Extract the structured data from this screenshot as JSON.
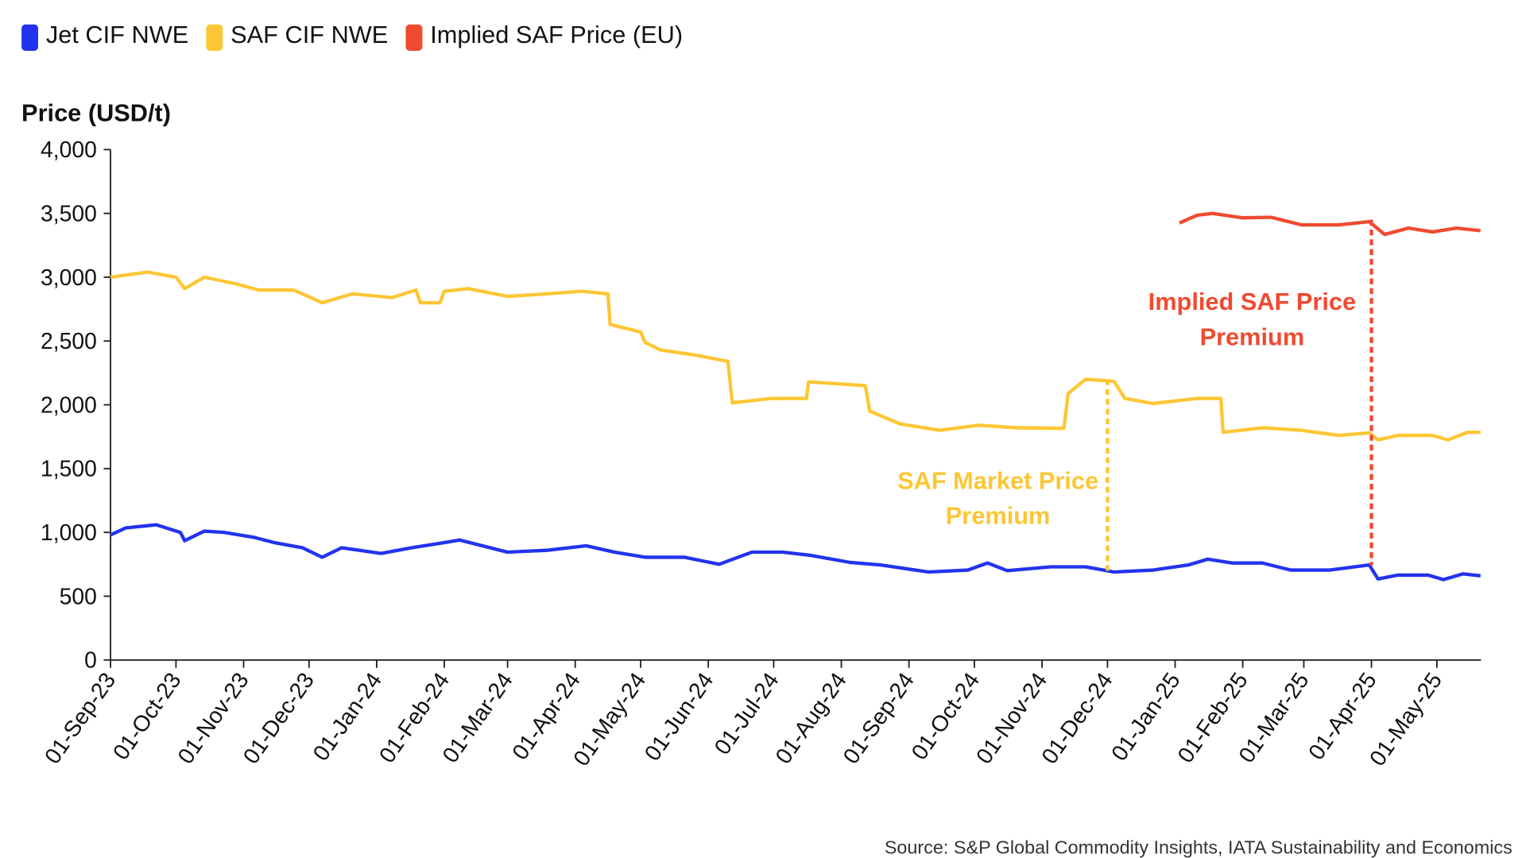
{
  "chart_data": {
    "type": "line",
    "title": "",
    "ylabel": "Price (USD/t)",
    "xlabel": "",
    "ylim": [
      0,
      4000
    ],
    "yticks": [
      "0",
      "500",
      "1,000",
      "1,500",
      "2,000",
      "2,500",
      "3,000",
      "3,500",
      "4,000"
    ],
    "ytick_values": [
      0,
      500,
      1000,
      1500,
      2000,
      2500,
      3000,
      3500,
      4000
    ],
    "xticks": [
      "01-Sep-23",
      "01-Oct-23",
      "01-Nov-23",
      "01-Dec-23",
      "01-Jan-24",
      "01-Feb-24",
      "01-Mar-24",
      "01-Apr-24",
      "01-May-24",
      "01-Jun-24",
      "01-Jul-24",
      "01-Aug-24",
      "01-Sep-24",
      "01-Oct-24",
      "01-Nov-24",
      "01-Dec-24",
      "01-Jan-25",
      "01-Feb-25",
      "01-Mar-25",
      "01-Apr-25",
      "01-May-25"
    ],
    "xtick_dates": [
      "2023-09-01",
      "2023-10-01",
      "2023-11-01",
      "2023-12-01",
      "2024-01-01",
      "2024-02-01",
      "2024-03-01",
      "2024-04-01",
      "2024-05-01",
      "2024-06-01",
      "2024-07-01",
      "2024-08-01",
      "2024-09-01",
      "2024-10-01",
      "2024-11-01",
      "2024-12-01",
      "2025-01-01",
      "2025-02-01",
      "2025-03-01",
      "2025-04-01",
      "2025-05-01"
    ],
    "grid": false,
    "legend_placement": "top-left",
    "series": [
      {
        "name": "Jet CIF NWE",
        "color": "#2233ee",
        "points": [
          [
            "2023-09-01",
            980
          ],
          [
            "2023-09-08",
            1035
          ],
          [
            "2023-09-22",
            1060
          ],
          [
            "2023-10-03",
            1000
          ],
          [
            "2023-10-05",
            935
          ],
          [
            "2023-10-14",
            1010
          ],
          [
            "2023-10-23",
            1000
          ],
          [
            "2023-11-06",
            960
          ],
          [
            "2023-11-15",
            920
          ],
          [
            "2023-11-28",
            880
          ],
          [
            "2023-12-07",
            805
          ],
          [
            "2023-12-16",
            880
          ],
          [
            "2024-01-03",
            835
          ],
          [
            "2024-01-17",
            880
          ],
          [
            "2024-02-01",
            920
          ],
          [
            "2024-02-08",
            940
          ],
          [
            "2024-03-01",
            845
          ],
          [
            "2024-03-19",
            860
          ],
          [
            "2024-04-06",
            895
          ],
          [
            "2024-04-19",
            845
          ],
          [
            "2024-05-03",
            805
          ],
          [
            "2024-05-21",
            805
          ],
          [
            "2024-06-06",
            750
          ],
          [
            "2024-06-21",
            845
          ],
          [
            "2024-07-05",
            845
          ],
          [
            "2024-07-18",
            820
          ],
          [
            "2024-08-05",
            765
          ],
          [
            "2024-08-19",
            745
          ],
          [
            "2024-09-10",
            690
          ],
          [
            "2024-09-28",
            705
          ],
          [
            "2024-10-07",
            760
          ],
          [
            "2024-10-16",
            700
          ],
          [
            "2024-11-05",
            730
          ],
          [
            "2024-11-21",
            730
          ],
          [
            "2024-12-04",
            690
          ],
          [
            "2024-12-22",
            705
          ],
          [
            "2025-01-07",
            745
          ],
          [
            "2025-01-16",
            790
          ],
          [
            "2025-01-27",
            760
          ],
          [
            "2025-02-10",
            760
          ],
          [
            "2025-02-23",
            705
          ],
          [
            "2025-03-13",
            705
          ],
          [
            "2025-03-31",
            745
          ],
          [
            "2025-04-04",
            635
          ],
          [
            "2025-04-13",
            665
          ],
          [
            "2025-04-27",
            665
          ],
          [
            "2025-05-04",
            630
          ],
          [
            "2025-05-13",
            675
          ],
          [
            "2025-05-21",
            660
          ]
        ]
      },
      {
        "name": "SAF CIF NWE",
        "color": "#fdc634",
        "points": [
          [
            "2023-09-01",
            3000
          ],
          [
            "2023-09-18",
            3040
          ],
          [
            "2023-10-01",
            3000
          ],
          [
            "2023-10-05",
            2910
          ],
          [
            "2023-10-14",
            3000
          ],
          [
            "2023-10-28",
            2950
          ],
          [
            "2023-11-08",
            2900
          ],
          [
            "2023-11-24",
            2900
          ],
          [
            "2023-12-07",
            2800
          ],
          [
            "2023-12-21",
            2870
          ],
          [
            "2024-01-08",
            2840
          ],
          [
            "2024-01-19",
            2900
          ],
          [
            "2024-01-21",
            2800
          ],
          [
            "2024-01-30",
            2800
          ],
          [
            "2024-02-01",
            2890
          ],
          [
            "2024-02-12",
            2910
          ],
          [
            "2024-03-01",
            2850
          ],
          [
            "2024-03-19",
            2870
          ],
          [
            "2024-04-04",
            2890
          ],
          [
            "2024-04-16",
            2870
          ],
          [
            "2024-04-17",
            2630
          ],
          [
            "2024-05-01",
            2570
          ],
          [
            "2024-05-03",
            2490
          ],
          [
            "2024-05-10",
            2430
          ],
          [
            "2024-05-26",
            2390
          ],
          [
            "2024-06-10",
            2340
          ],
          [
            "2024-06-12",
            2015
          ],
          [
            "2024-06-30",
            2050
          ],
          [
            "2024-07-16",
            2050
          ],
          [
            "2024-07-17",
            2180
          ],
          [
            "2024-08-12",
            2150
          ],
          [
            "2024-08-14",
            1950
          ],
          [
            "2024-08-28",
            1850
          ],
          [
            "2024-09-15",
            1800
          ],
          [
            "2024-10-03",
            1840
          ],
          [
            "2024-10-20",
            1820
          ],
          [
            "2024-11-11",
            1815
          ],
          [
            "2024-11-13",
            2090
          ],
          [
            "2024-11-21",
            2200
          ],
          [
            "2024-12-04",
            2185
          ],
          [
            "2024-12-09",
            2050
          ],
          [
            "2024-12-22",
            2010
          ],
          [
            "2025-01-11",
            2050
          ],
          [
            "2025-01-22",
            2050
          ],
          [
            "2025-01-23",
            1785
          ],
          [
            "2025-02-10",
            1820
          ],
          [
            "2025-02-28",
            1800
          ],
          [
            "2025-03-17",
            1760
          ],
          [
            "2025-03-31",
            1780
          ],
          [
            "2025-04-04",
            1725
          ],
          [
            "2025-04-13",
            1760
          ],
          [
            "2025-04-29",
            1760
          ],
          [
            "2025-05-06",
            1725
          ],
          [
            "2025-05-15",
            1785
          ],
          [
            "2025-05-21",
            1785
          ]
        ]
      },
      {
        "name": "Implied SAF Price (EU)",
        "color": "#f04a30",
        "points": [
          [
            "2025-01-03",
            3425
          ],
          [
            "2025-01-11",
            3485
          ],
          [
            "2025-01-18",
            3500
          ],
          [
            "2025-02-01",
            3465
          ],
          [
            "2025-02-14",
            3470
          ],
          [
            "2025-02-28",
            3410
          ],
          [
            "2025-03-17",
            3410
          ],
          [
            "2025-03-31",
            3435
          ],
          [
            "2025-04-07",
            3335
          ],
          [
            "2025-04-18",
            3385
          ],
          [
            "2025-04-29",
            3355
          ],
          [
            "2025-05-10",
            3385
          ],
          [
            "2025-05-21",
            3365
          ]
        ]
      }
    ],
    "annotations": [
      {
        "text_lines": [
          "SAF Market Price",
          "Premium"
        ],
        "color": "#fdc634",
        "date": "2024-12-01",
        "from": 2200,
        "to": 700
      },
      {
        "text_lines": [
          "Implied SAF Price",
          "Premium"
        ],
        "color": "#f04a30",
        "date": "2025-04-01",
        "from": 3450,
        "to": 740
      }
    ]
  },
  "source": "Source: S&P Global Commodity Insights, IATA Sustainability and Economics"
}
